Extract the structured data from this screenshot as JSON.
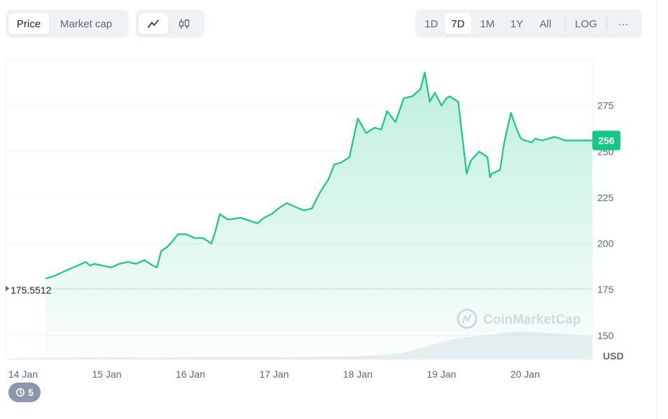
{
  "toolbar": {
    "metric_tabs": [
      {
        "label": "Price",
        "active": true
      },
      {
        "label": "Market cap",
        "active": false
      }
    ],
    "view_icons": [
      {
        "icon": "line-chart-icon",
        "active": true
      },
      {
        "icon": "candlestick-icon",
        "active": false
      }
    ],
    "ranges": [
      {
        "label": "1D",
        "active": false
      },
      {
        "label": "7D",
        "active": true
      },
      {
        "label": "1M",
        "active": false
      },
      {
        "label": "1Y",
        "active": false
      },
      {
        "label": "All",
        "active": false
      }
    ],
    "log_label": "LOG",
    "more_label": "···"
  },
  "history": {
    "count": "5",
    "icon": "history-icon"
  },
  "colors": {
    "line": "#16c784",
    "accent": "#16c784",
    "grid": "#eff2f5",
    "axis_text": "#58667e"
  },
  "chart_data": {
    "type": "area",
    "title": "",
    "watermark": "CoinMarketCap",
    "ylabel": "USD",
    "ylim": [
      137,
      300
    ],
    "yticks": [
      "150",
      "175",
      "200",
      "225",
      "250",
      "275"
    ],
    "xticks": [
      "14 Jan",
      "15 Jan",
      "16 Jan",
      "17 Jan",
      "18 Jan",
      "19 Jan",
      "20 Jan"
    ],
    "xlim": [
      0,
      6.8
    ],
    "open_price_label": "175.5512",
    "open_price": 175.5512,
    "current_price_label": "256",
    "current_price": 256,
    "grid": true,
    "series": [
      {
        "x": [
          0.27,
          0.35,
          0.45,
          0.55,
          0.65,
          0.75,
          0.8,
          0.85,
          0.95,
          1.05,
          1.15,
          1.25,
          1.35,
          1.45,
          1.55,
          1.6,
          1.65,
          1.72,
          1.78,
          1.85,
          1.95,
          2.05,
          2.15,
          2.25,
          2.3,
          2.35,
          2.45,
          2.6,
          2.8,
          2.88,
          2.92,
          2.97,
          3.05,
          3.15,
          3.25,
          3.35,
          3.45,
          3.55,
          3.65,
          3.72,
          3.8,
          3.9,
          4.0,
          4.1,
          4.2,
          4.28,
          4.35,
          4.45,
          4.55,
          4.65,
          4.75,
          4.8,
          4.83,
          4.86,
          4.92,
          5.0,
          5.06,
          5.1,
          5.2,
          5.3,
          5.35,
          5.45,
          5.55,
          5.58,
          5.6,
          5.7,
          5.75,
          5.83,
          5.9,
          5.95,
          6.0,
          6.08,
          6.12,
          6.2,
          6.35,
          6.42,
          6.48,
          6.55,
          6.62,
          6.7,
          6.8
        ],
        "y": [
          181,
          182,
          184,
          186,
          188,
          190,
          188,
          189,
          188,
          187,
          189,
          190,
          189,
          191,
          188,
          187,
          196,
          198,
          201,
          205,
          205,
          203,
          203,
          200,
          207,
          216,
          213,
          214,
          211,
          214,
          215,
          216,
          219,
          222,
          220,
          218,
          219,
          228,
          235,
          243,
          244,
          247,
          268,
          260,
          263,
          262,
          272,
          266,
          279,
          280,
          284,
          293,
          285,
          277,
          282,
          275,
          279,
          280,
          277,
          238,
          245,
          250,
          247,
          236,
          238,
          240,
          255,
          271,
          262,
          257,
          256,
          255,
          257,
          256,
          258,
          257,
          256,
          256,
          256,
          256,
          256
        ]
      }
    ],
    "volume": {
      "x": [
        0,
        0.5,
        1,
        1.5,
        2,
        2.5,
        3,
        3.5,
        4,
        4.5,
        4.8,
        5,
        5.2,
        5.5,
        5.8,
        6,
        6.3,
        6.6,
        6.8
      ],
      "values": [
        0.05,
        0.05,
        0.06,
        0.05,
        0.06,
        0.06,
        0.06,
        0.07,
        0.08,
        0.15,
        0.32,
        0.45,
        0.55,
        0.62,
        0.7,
        0.72,
        0.68,
        0.65,
        0.6
      ]
    }
  }
}
